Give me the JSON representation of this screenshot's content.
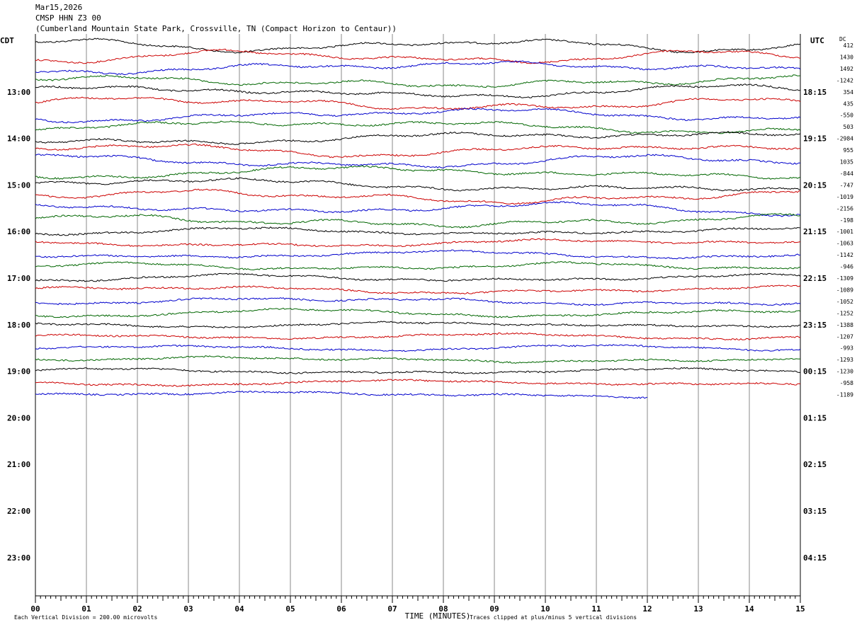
{
  "header": {
    "date": "Mar15,2026",
    "channel": "CMSP HHN Z3 00",
    "location": "(Cumberland Mountain State Park, Crossville, TN (Compact Horizon to Centaur))"
  },
  "chart_data": {
    "type": "line",
    "title": "CMSP HHN Z3 00",
    "xlabel": "TIME (MINUTES)",
    "x_ticks": [
      "00",
      "01",
      "02",
      "03",
      "04",
      "05",
      "06",
      "07",
      "08",
      "09",
      "10",
      "11",
      "12",
      "13",
      "14",
      "15"
    ],
    "xlim": [
      0,
      15
    ],
    "left_axis_title": "CDT",
    "right_axis_title": "UTC",
    "dc_title": "DC",
    "left_hour_labels": [
      "13:00",
      "14:00",
      "15:00",
      "16:00",
      "17:00",
      "18:00",
      "19:00",
      "20:00",
      "21:00",
      "22:00",
      "23:00"
    ],
    "right_hour_labels": [
      "18:15",
      "19:15",
      "20:15",
      "21:15",
      "22:15",
      "23:15",
      "00:15",
      "01:15",
      "02:15",
      "03:15",
      "04:15"
    ],
    "dc_offsets": [
      "412",
      "1430",
      "1492",
      "-1242",
      "354",
      "435",
      "-550",
      "503",
      "-2984",
      "955",
      "1035",
      "-844",
      "-747",
      "-1019",
      "-2156",
      "-198",
      "-1001",
      "-1063",
      "-1142",
      "-946",
      "-1309",
      "-1089",
      "-1052",
      "-1252",
      "-1388",
      "-1207",
      "-993",
      "-1293",
      "-1230",
      "-958",
      "-1189"
    ],
    "trace_colors": [
      "#000000",
      "#cc0000",
      "#0000cc",
      "#006600"
    ],
    "trace_count": 31,
    "last_trace_end_minute": 12.0,
    "footer_left": "Each Vertical Division = 200.00 microvolts",
    "footer_right": "Traces clipped at plus/minus 5 vertical divisions"
  }
}
